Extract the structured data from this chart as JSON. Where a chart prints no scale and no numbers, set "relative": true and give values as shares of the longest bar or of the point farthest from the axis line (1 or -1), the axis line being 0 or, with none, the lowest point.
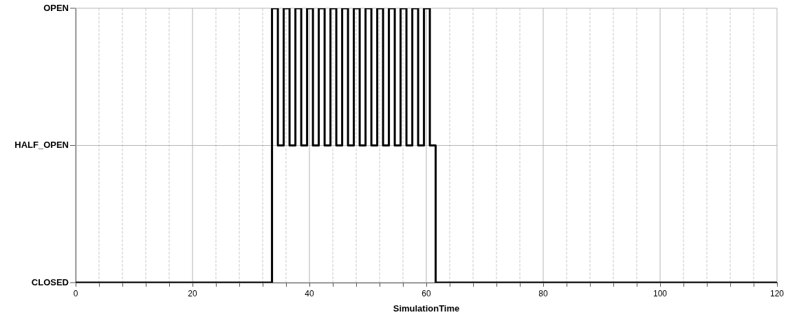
{
  "chart_data": {
    "type": "step",
    "xlabel": "SimulationTime",
    "x": [
      0,
      33.6,
      34.6,
      35.6,
      36.6,
      37.6,
      38.6,
      39.6,
      40.6,
      41.6,
      42.6,
      43.6,
      44.6,
      45.6,
      46.6,
      47.6,
      48.6,
      49.6,
      50.6,
      51.6,
      52.6,
      53.6,
      54.6,
      55.6,
      56.6,
      57.6,
      58.6,
      59.6,
      60.6,
      61.6,
      120
    ],
    "series": [
      {
        "color": "#000000",
        "values": [
          0,
          0,
          1,
          0.5,
          1,
          0.5,
          1,
          0.5,
          1,
          0.5,
          1,
          0.5,
          1,
          0.5,
          1,
          0.5,
          1,
          0.5,
          1,
          0.5,
          1,
          0.5,
          1,
          0.5,
          1,
          0.5,
          1,
          0.5,
          1,
          0.5,
          0
        ]
      }
    ],
    "relative": true,
    "annotations": [
      "OPEN",
      "HALF_OPEN",
      "CLOSED"
    ],
    "xlim": [
      0,
      120
    ],
    "xticks": [
      0,
      {
        "value": 4,
        "label": null
      },
      {
        "value": 8,
        "label": null
      },
      {
        "value": 12,
        "label": null
      },
      {
        "value": 16,
        "label": null
      },
      20,
      {
        "value": 24,
        "label": null
      },
      {
        "value": 28,
        "label": null
      },
      {
        "value": 32,
        "label": null
      },
      {
        "value": 36,
        "label": null
      },
      40,
      {
        "value": 44,
        "label": null
      },
      {
        "value": 48,
        "label": null
      },
      {
        "value": 52,
        "label": null
      },
      {
        "value": 56,
        "label": null
      },
      60,
      {
        "value": 64,
        "label": null
      },
      {
        "value": 68,
        "label": null
      },
      {
        "value": 72,
        "label": null
      },
      {
        "value": 76,
        "label": null
      },
      80,
      {
        "value": 84,
        "label": null
      },
      {
        "value": 88,
        "label": null
      },
      {
        "value": 92,
        "label": null
      },
      {
        "value": 96,
        "label": null
      },
      100,
      {
        "value": 104,
        "label": null
      },
      {
        "value": 108,
        "label": null
      },
      {
        "value": 112,
        "label": null
      },
      {
        "value": 116,
        "label": null
      },
      120
    ],
    "grid": true,
    "legend": false,
    "marker": "none",
    "line_style": "solid"
  }
}
